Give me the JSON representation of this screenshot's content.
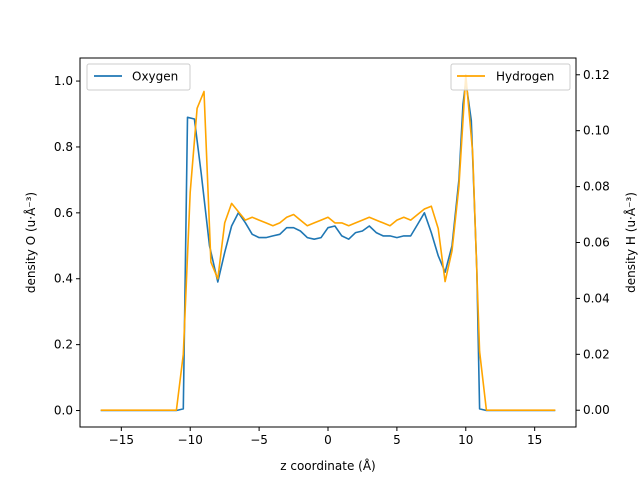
{
  "chart_data": {
    "type": "line",
    "title": "",
    "xlabel": "z coordinate (Å)",
    "ylabel_left": "density O (u·Å⁻³)",
    "ylabel_right": "density H (u·Å⁻³)",
    "xlim": [
      -18,
      18
    ],
    "ylim_left": [
      -0.05,
      1.07
    ],
    "ylim_right": [
      -0.006,
      0.126
    ],
    "xticks": [
      -15,
      -10,
      -5,
      0,
      5,
      10,
      15
    ],
    "xtick_labels": [
      "−15",
      "−10",
      "−5",
      "0",
      "5",
      "10",
      "15"
    ],
    "yticks_left": [
      0.0,
      0.2,
      0.4,
      0.6,
      0.8,
      1.0
    ],
    "ytick_labels_left": [
      "0.0",
      "0.2",
      "0.4",
      "0.6",
      "0.8",
      "1.0"
    ],
    "yticks_right": [
      0.0,
      0.02,
      0.04,
      0.06,
      0.08,
      0.1,
      0.12
    ],
    "ytick_labels_right": [
      "0.00",
      "0.02",
      "0.04",
      "0.06",
      "0.08",
      "0.10",
      "0.12"
    ],
    "grid": false,
    "series": [
      {
        "name": "Oxygen",
        "axis": "left",
        "color": "#1f77b4",
        "legend_position": "upper-left",
        "x": [
          -16.5,
          -11.0,
          -10.5,
          -10.2,
          -9.7,
          -9.2,
          -8.6,
          -8.0,
          -7.5,
          -7.0,
          -6.5,
          -6.0,
          -5.5,
          -5.0,
          -4.5,
          -4.0,
          -3.5,
          -3.0,
          -2.5,
          -2.0,
          -1.5,
          -1.0,
          -0.5,
          0.0,
          0.5,
          1.0,
          1.5,
          2.0,
          2.5,
          3.0,
          3.5,
          4.0,
          4.5,
          5.0,
          5.5,
          6.0,
          6.5,
          7.0,
          7.5,
          8.0,
          8.5,
          9.0,
          9.5,
          9.8,
          10.0,
          10.4,
          10.8,
          11.0,
          11.5,
          16.5
        ],
        "y": [
          0.0,
          0.0,
          0.005,
          0.89,
          0.885,
          0.72,
          0.5,
          0.39,
          0.48,
          0.56,
          0.6,
          0.57,
          0.535,
          0.525,
          0.525,
          0.53,
          0.535,
          0.555,
          0.555,
          0.545,
          0.525,
          0.52,
          0.525,
          0.555,
          0.56,
          0.53,
          0.52,
          0.54,
          0.545,
          0.56,
          0.54,
          0.53,
          0.53,
          0.525,
          0.53,
          0.53,
          0.565,
          0.6,
          0.54,
          0.47,
          0.42,
          0.5,
          0.7,
          0.93,
          1.0,
          0.88,
          0.43,
          0.005,
          0.0,
          0.0
        ]
      },
      {
        "name": "Hydrogen",
        "axis": "right",
        "color": "#ffa500",
        "legend_position": "upper-right",
        "x": [
          -16.5,
          -11.0,
          -10.5,
          -10.0,
          -9.5,
          -9.0,
          -8.5,
          -8.0,
          -7.5,
          -7.0,
          -6.5,
          -6.0,
          -5.5,
          -5.0,
          -4.5,
          -4.0,
          -3.5,
          -3.0,
          -2.5,
          -2.0,
          -1.5,
          -1.0,
          -0.5,
          0.0,
          0.5,
          1.0,
          1.5,
          2.0,
          2.5,
          3.0,
          3.5,
          4.0,
          4.5,
          5.0,
          5.5,
          6.0,
          6.5,
          7.0,
          7.5,
          8.0,
          8.5,
          9.0,
          9.5,
          10.0,
          10.5,
          11.0,
          11.5,
          16.5
        ],
        "y": [
          0.0,
          0.0,
          0.02,
          0.078,
          0.108,
          0.114,
          0.053,
          0.047,
          0.067,
          0.074,
          0.071,
          0.068,
          0.069,
          0.068,
          0.067,
          0.066,
          0.067,
          0.069,
          0.07,
          0.068,
          0.066,
          0.067,
          0.068,
          0.069,
          0.067,
          0.067,
          0.066,
          0.067,
          0.068,
          0.069,
          0.068,
          0.067,
          0.066,
          0.068,
          0.069,
          0.068,
          0.07,
          0.072,
          0.073,
          0.065,
          0.046,
          0.057,
          0.08,
          0.12,
          0.092,
          0.021,
          0.0,
          0.0
        ]
      }
    ]
  }
}
